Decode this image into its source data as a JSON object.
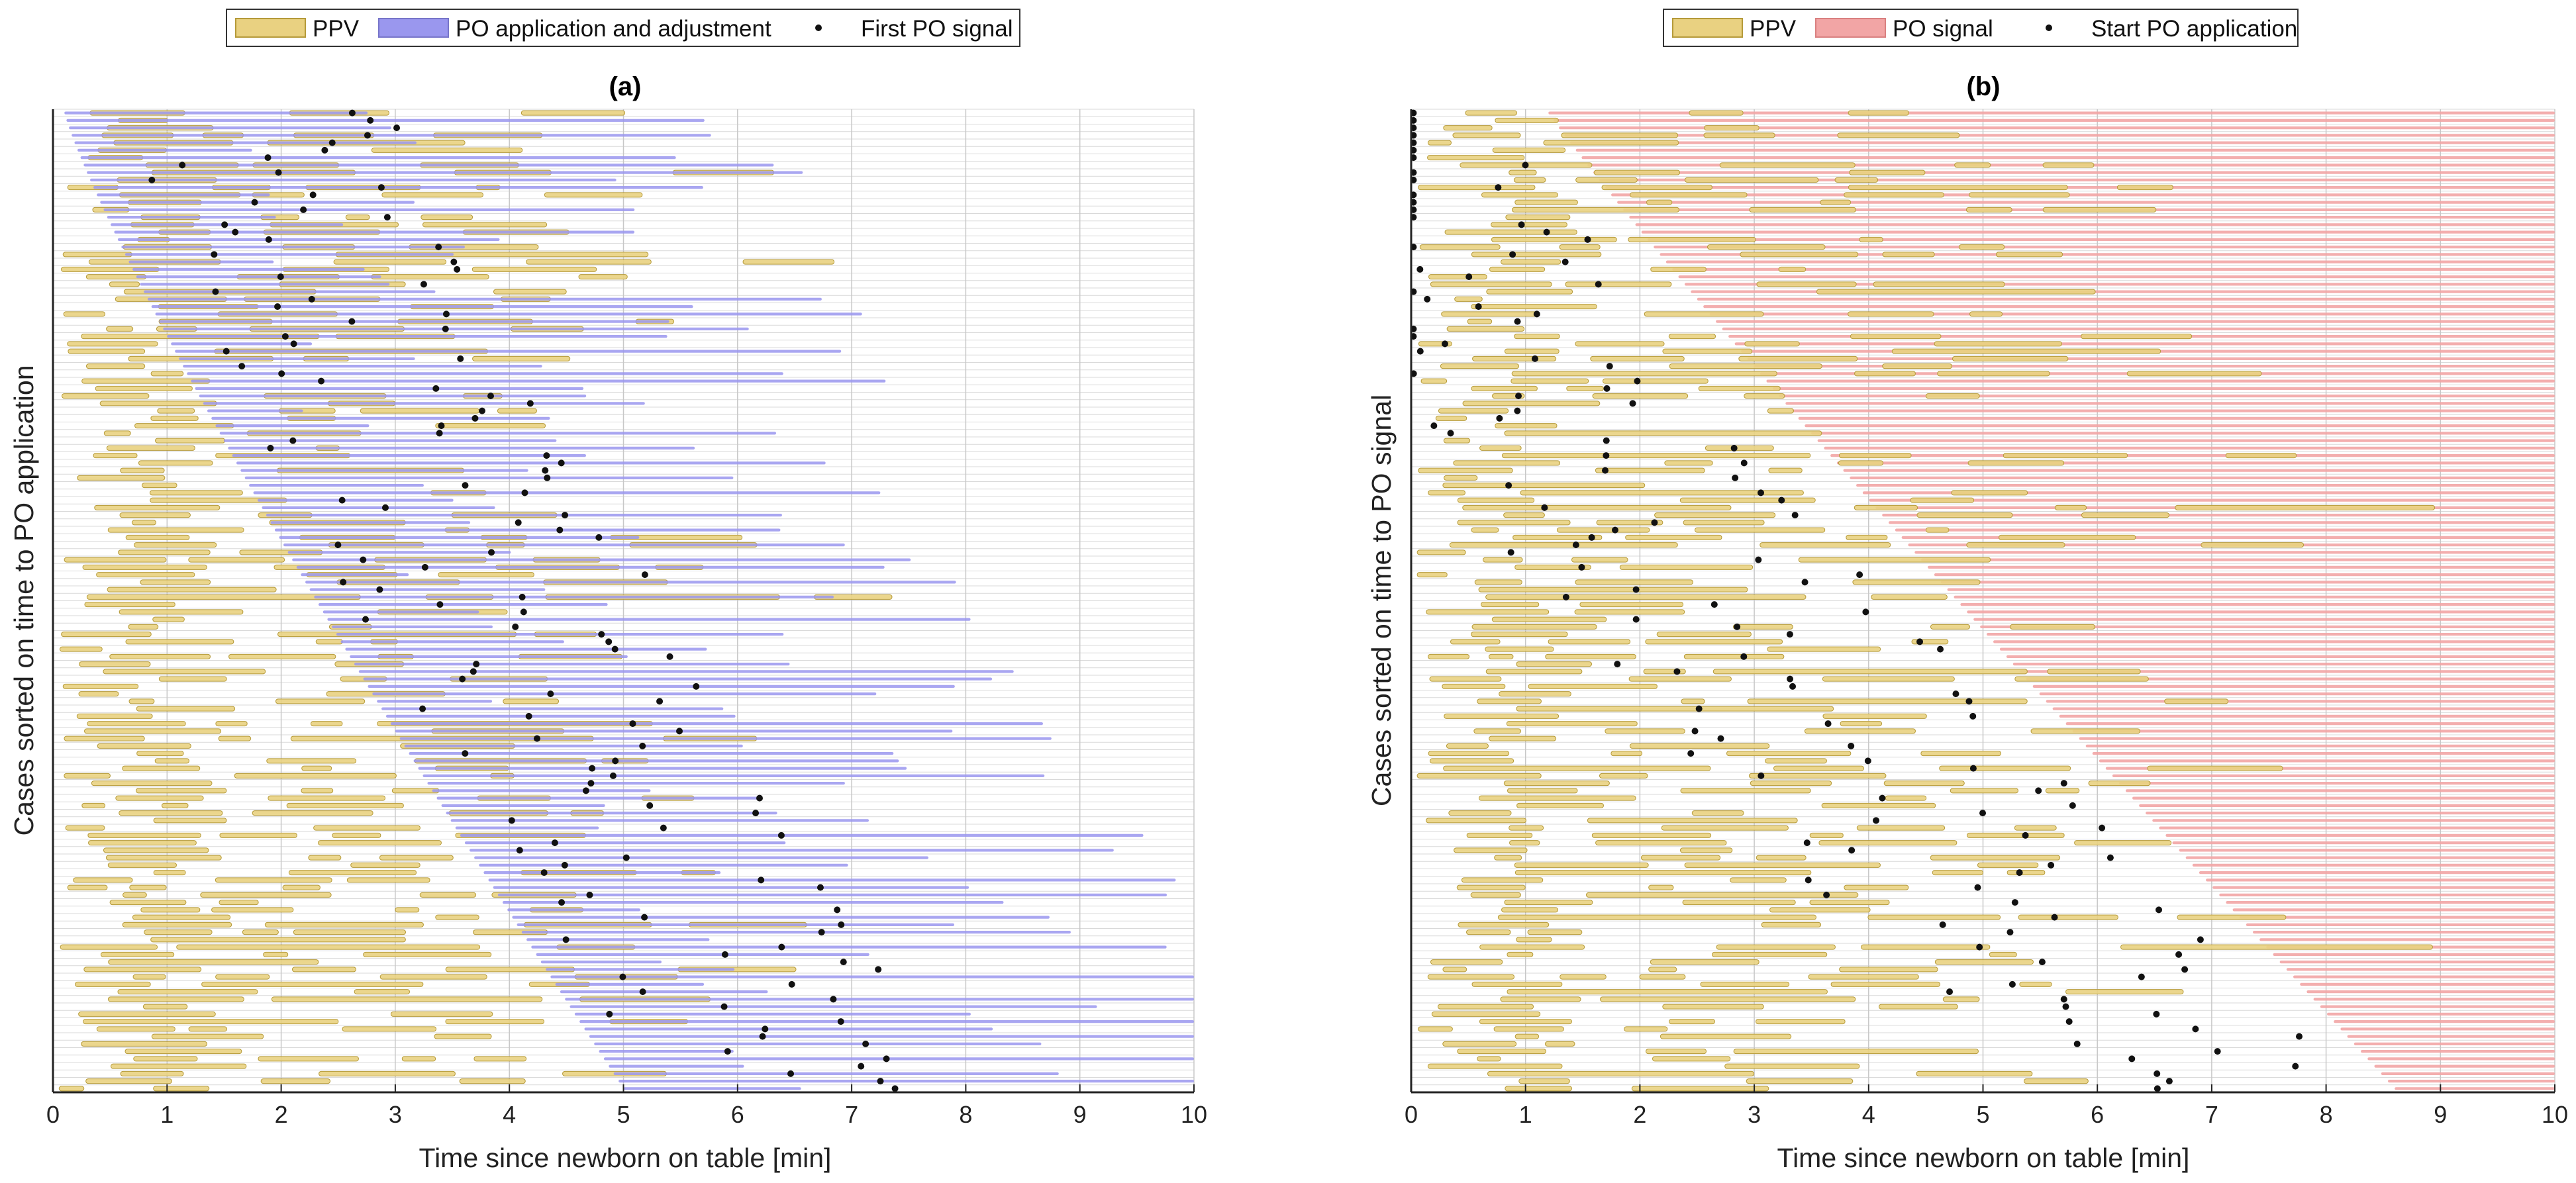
{
  "colors": {
    "ppv": "#e9d181",
    "ppv_edge": "#b59a3a",
    "po_application": "#9a97ee",
    "po_signal": "#f2a5a5",
    "dot": "#111111",
    "grid": "#d9d9d9"
  },
  "chart_data": [
    {
      "type": "timeline",
      "panel_label": "(a)",
      "xlabel": "Time since newborn on table [min]",
      "ylabel": "Cases sorted on time to PO application",
      "xlim": [
        0,
        10
      ],
      "xticks": [
        "0",
        "1",
        "2",
        "3",
        "4",
        "5",
        "6",
        "7",
        "8",
        "9",
        "10"
      ],
      "grid": "vertical at each minute, horizontal per case row",
      "case_count": 132,
      "legend": [
        {
          "label": "PPV",
          "kind": "bar",
          "color": "ppv"
        },
        {
          "label": "PO application and adjustment",
          "kind": "bar",
          "color": "po_application"
        },
        {
          "label": "First PO signal",
          "kind": "dot",
          "color": "dot"
        }
      ],
      "series_description": {
        "PPV": "intermittent bars of positive pressure ventilation, mostly within 0-4 min",
        "PO application and adjustment": "bar per case starting at the PO application time (rows sorted ascending, ~0.1 min at top to ~5 min at bottom) and lasting about 1-7 min",
        "First PO signal": "one dot per case, typically 0.5-3 min after PO application starts"
      }
    },
    {
      "type": "timeline",
      "panel_label": "(b)",
      "xlabel": "Time since newborn on table [min]",
      "ylabel": "Cases sorted on time to PO signal",
      "xlim": [
        0,
        10
      ],
      "xticks": [
        "0",
        "1",
        "2",
        "3",
        "4",
        "5",
        "6",
        "7",
        "8",
        "9",
        "10"
      ],
      "grid": "vertical at each minute, horizontal per case row",
      "case_count": 132,
      "legend": [
        {
          "label": "PPV",
          "kind": "bar",
          "color": "ppv"
        },
        {
          "label": "PO signal",
          "kind": "bar",
          "color": "po_signal"
        },
        {
          "label": "Start PO application",
          "kind": "dot",
          "color": "dot"
        }
      ],
      "series_description": {
        "PPV": "intermittent bars of positive pressure ventilation, mostly within 0-5 min",
        "PO signal": "bar per case from first PO signal (sorted ascending, ~1.2 min at top to ~8.5 min at bottom) to the end of the 10 min window",
        "Start PO application": "one dot per case, typically 0.5-4 min before the PO signal"
      }
    }
  ]
}
